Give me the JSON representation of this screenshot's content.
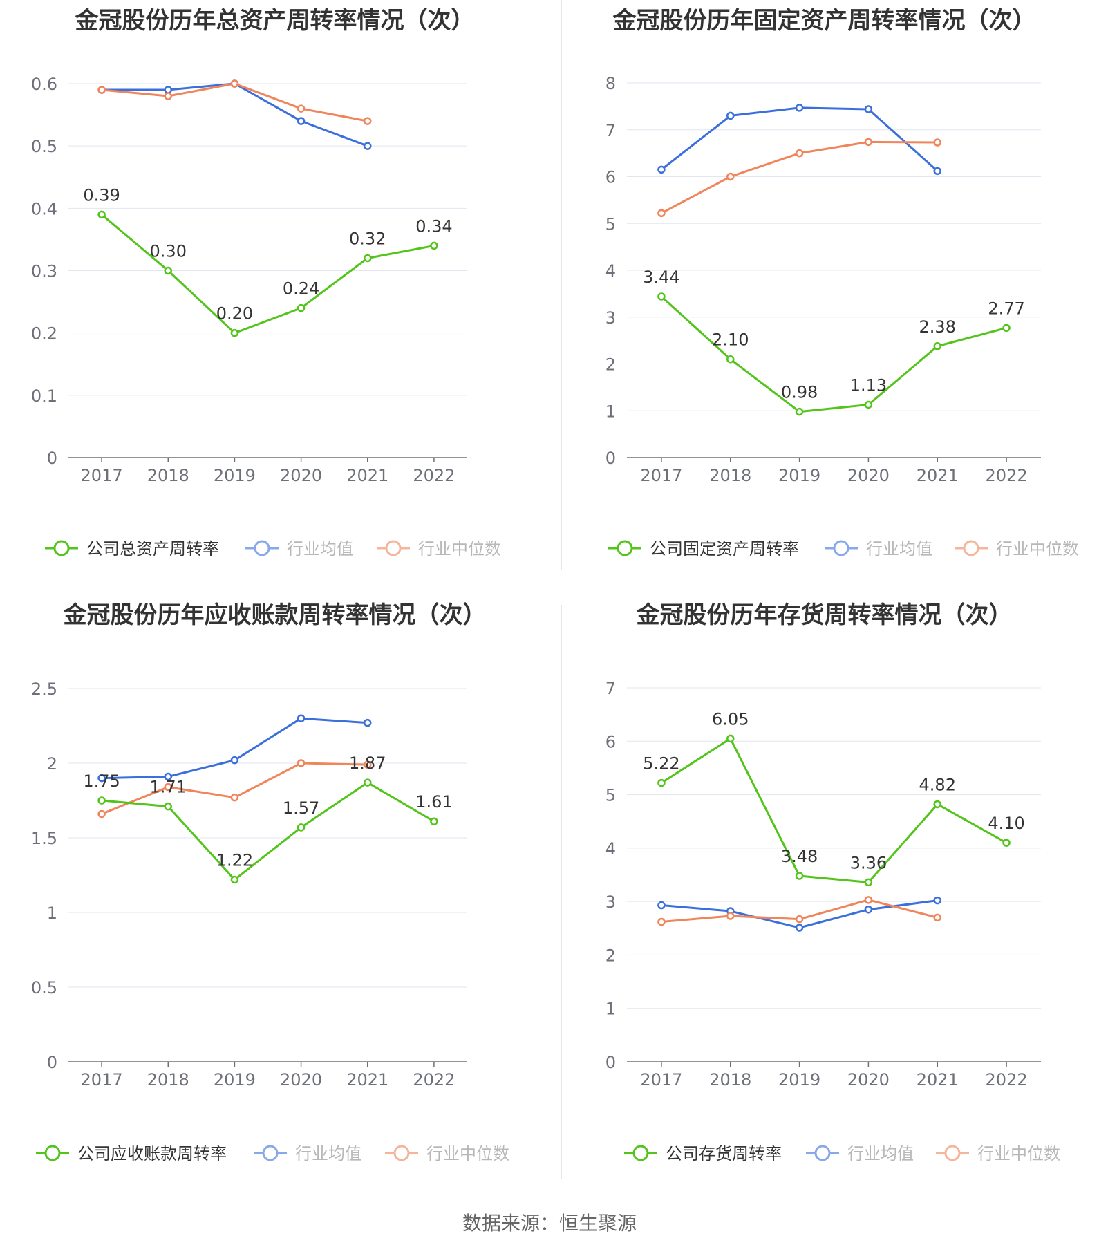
{
  "source_label": "数据来源：恒生聚源",
  "chart_data": [
    {
      "type": "line",
      "title": "金冠股份历年总资产周转率情况（次）",
      "categories": [
        "2017",
        "2018",
        "2019",
        "2020",
        "2021",
        "2022"
      ],
      "ylim": [
        0,
        0.6
      ],
      "yticks": [
        "0",
        "0.1",
        "0.2",
        "0.3",
        "0.4",
        "0.5",
        "0.6"
      ],
      "grid": true,
      "legend_position": "bottom",
      "series": [
        {
          "name": "公司总资产周转率",
          "color": "#52c41a",
          "values": [
            0.39,
            0.3,
            0.2,
            0.24,
            0.32,
            0.34
          ],
          "labels": [
            "0.39",
            "0.30",
            "0.20",
            "0.24",
            "0.32",
            "0.34"
          ]
        },
        {
          "name": "行业均值",
          "color": "#3a6fdc",
          "values": [
            0.59,
            0.59,
            0.6,
            0.54,
            0.5,
            null
          ]
        },
        {
          "name": "行业中位数",
          "color": "#f0845a",
          "values": [
            0.59,
            0.58,
            0.6,
            0.56,
            0.54,
            null
          ]
        }
      ]
    },
    {
      "type": "line",
      "title": "金冠股份历年固定资产周转率情况（次）",
      "categories": [
        "2017",
        "2018",
        "2019",
        "2020",
        "2021",
        "2022"
      ],
      "ylim": [
        0,
        8
      ],
      "yticks": [
        "0",
        "1",
        "2",
        "3",
        "4",
        "5",
        "6",
        "7",
        "8"
      ],
      "grid": true,
      "legend_position": "bottom",
      "series": [
        {
          "name": "公司固定资产周转率",
          "color": "#52c41a",
          "values": [
            3.44,
            2.1,
            0.98,
            1.13,
            2.38,
            2.77
          ],
          "labels": [
            "3.44",
            "2.10",
            "0.98",
            "1.13",
            "2.38",
            "2.77"
          ]
        },
        {
          "name": "行业均值",
          "color": "#3a6fdc",
          "values": [
            6.15,
            7.3,
            7.47,
            7.44,
            6.12,
            null
          ]
        },
        {
          "name": "行业中位数",
          "color": "#f0845a",
          "values": [
            5.22,
            6.0,
            6.5,
            6.74,
            6.73,
            null
          ]
        }
      ]
    },
    {
      "type": "line",
      "title": "金冠股份历年应收账款周转率情况（次）",
      "categories": [
        "2017",
        "2018",
        "2019",
        "2020",
        "2021",
        "2022"
      ],
      "ylim": [
        0,
        2.5
      ],
      "yticks": [
        "0",
        "0.5",
        "1",
        "1.5",
        "2",
        "2.5"
      ],
      "grid": true,
      "legend_position": "bottom",
      "series": [
        {
          "name": "公司应收账款周转率",
          "color": "#52c41a",
          "values": [
            1.75,
            1.71,
            1.22,
            1.57,
            1.87,
            1.61
          ],
          "labels": [
            "1.75",
            "1.71",
            "1.22",
            "1.57",
            "1.87",
            "1.61"
          ]
        },
        {
          "name": "行业均值",
          "color": "#3a6fdc",
          "values": [
            1.9,
            1.91,
            2.02,
            2.3,
            2.27,
            null
          ]
        },
        {
          "name": "行业中位数",
          "color": "#f0845a",
          "values": [
            1.66,
            1.84,
            1.77,
            2.0,
            1.99,
            null
          ]
        }
      ]
    },
    {
      "type": "line",
      "title": "金冠股份历年存货周转率情况（次）",
      "categories": [
        "2017",
        "2018",
        "2019",
        "2020",
        "2021",
        "2022"
      ],
      "ylim": [
        0,
        7
      ],
      "yticks": [
        "0",
        "1",
        "2",
        "3",
        "4",
        "5",
        "6",
        "7"
      ],
      "grid": true,
      "legend_position": "bottom",
      "series": [
        {
          "name": "公司存货周转率",
          "color": "#52c41a",
          "values": [
            5.22,
            6.05,
            3.48,
            3.36,
            4.82,
            4.1
          ],
          "labels": [
            "5.22",
            "6.05",
            "3.48",
            "3.36",
            "4.82",
            "4.10"
          ]
        },
        {
          "name": "行业均值",
          "color": "#3a6fdc",
          "values": [
            2.93,
            2.82,
            2.51,
            2.85,
            3.02,
            null
          ]
        },
        {
          "name": "行业中位数",
          "color": "#f0845a",
          "values": [
            2.62,
            2.73,
            2.67,
            3.03,
            2.7,
            null
          ]
        }
      ]
    }
  ]
}
